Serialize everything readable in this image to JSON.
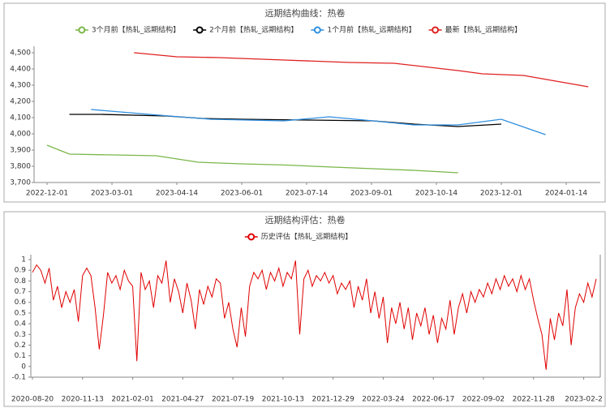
{
  "chart_data": [
    {
      "type": "line",
      "title": "远期结构曲线：热卷",
      "series": [
        {
          "name": "3个月前【热轧_远期结构】",
          "color": "#7ab648",
          "x": [
            "2022-12-01",
            "2023-01-01",
            "2023-03-31",
            "2023-04-30",
            "2023-06-01",
            "2023-06-29",
            "2023-08-03",
            "2023-09-02",
            "2023-09-29",
            "2023-10-30"
          ],
          "values": [
            3930,
            3875,
            3865,
            3825,
            3815,
            3808,
            3795,
            3785,
            3775,
            3760
          ]
        },
        {
          "name": "2个月前【热轧_远期结构】",
          "color": "#000000",
          "x": [
            "2023-01-01",
            "2023-02-14",
            "2023-04-07",
            "2023-05-03",
            "2023-06-01",
            "2023-07-14",
            "2023-09-02",
            "2023-09-29",
            "2023-10-30",
            "2023-12-01"
          ],
          "values": [
            4120,
            4120,
            4110,
            4095,
            4090,
            4085,
            4080,
            4060,
            4045,
            4060
          ]
        },
        {
          "name": "1个月前【热轧_远期结构】",
          "color": "#2e8fe0",
          "x": [
            "2023-01-31",
            "2023-04-09",
            "2023-05-09",
            "2023-06-29",
            "2023-07-31",
            "2023-09-02",
            "2023-09-29",
            "2023-10-30",
            "2023-12-01",
            "2023-12-31"
          ],
          "values": [
            4150,
            4110,
            4090,
            4080,
            4105,
            4080,
            4055,
            4055,
            4090,
            3995
          ]
        },
        {
          "name": "最新【热轧_远期结构】",
          "color": "#e02020",
          "x": [
            "2023-03-16",
            "2023-04-14",
            "2023-05-15",
            "2023-06-29",
            "2023-08-15",
            "2023-09-16",
            "2023-10-30",
            "2023-11-17",
            "2023-12-16",
            "2024-01-29"
          ],
          "values": [
            4500,
            4475,
            4470,
            4455,
            4440,
            4435,
            4390,
            4370,
            4360,
            4290
          ]
        }
      ],
      "xticks": [
        "2022-12-01",
        "2023-03-01",
        "2023-04-14",
        "2023-06-01",
        "2023-07-14",
        "2023-09-01",
        "2023-10-14",
        "2023-12-01",
        "2024-01-14"
      ],
      "ylim": [
        3700,
        4500
      ],
      "yticks": [
        {
          "value": 3700,
          "label": "3,700"
        },
        {
          "value": 3800,
          "label": "3,800"
        },
        {
          "value": 3900,
          "label": "3,900"
        },
        {
          "value": 4000,
          "label": "4,000"
        },
        {
          "value": 4100,
          "label": "4,100"
        },
        {
          "value": 4200,
          "label": "4,200"
        },
        {
          "value": 4300,
          "label": "4,300"
        },
        {
          "value": 4400,
          "label": "4,400"
        },
        {
          "value": 4500,
          "label": "4,500"
        }
      ]
    },
    {
      "type": "line",
      "title": "远期结构评估：热卷",
      "categories": [
        "2020-08-20",
        null,
        null,
        null,
        null,
        null,
        null,
        null,
        null,
        null,
        null,
        null,
        "2020-11-13",
        null,
        null,
        null,
        null,
        null,
        null,
        null,
        null,
        null,
        null,
        null,
        "2021-02-01",
        null,
        null,
        null,
        null,
        null,
        null,
        null,
        null,
        null,
        null,
        null,
        "2021-04-27",
        null,
        null,
        null,
        null,
        null,
        null,
        null,
        null,
        null,
        null,
        null,
        "2021-07-19",
        null,
        null,
        null,
        null,
        null,
        null,
        null,
        null,
        null,
        null,
        null,
        "2021-10-13",
        null,
        null,
        null,
        null,
        null,
        null,
        null,
        null,
        null,
        null,
        null,
        "2021-12-29",
        null,
        null,
        null,
        null,
        null,
        null,
        null,
        null,
        null,
        null,
        null,
        "2022-03-24",
        null,
        null,
        null,
        null,
        null,
        null,
        null,
        null,
        null,
        null,
        null,
        "2022-06-17",
        null,
        null,
        null,
        null,
        null,
        null,
        null,
        null,
        null,
        null,
        null,
        "2022-09-02",
        null,
        null,
        null,
        null,
        null,
        null,
        null,
        null,
        null,
        null,
        null,
        "2022-11-28",
        null,
        null,
        null,
        null,
        null,
        null,
        null,
        null,
        null,
        null,
        null,
        "2023-02-2",
        null,
        null,
        null
      ],
      "series": [
        {
          "name": "历史评估【热轧_远期结构】",
          "color": "#e00000",
          "values": [
            0.88,
            0.95,
            0.9,
            0.78,
            0.92,
            0.62,
            0.75,
            0.55,
            0.7,
            0.6,
            0.72,
            0.42,
            0.85,
            0.92,
            0.85,
            0.55,
            0.16,
            0.48,
            0.88,
            0.78,
            0.85,
            0.72,
            0.9,
            0.8,
            0.75,
            0.05,
            0.88,
            0.72,
            0.8,
            0.55,
            0.85,
            0.78,
            0.99,
            0.6,
            0.82,
            0.7,
            0.5,
            0.78,
            0.62,
            0.35,
            0.72,
            0.58,
            0.75,
            0.65,
            0.82,
            0.78,
            0.45,
            0.6,
            0.35,
            0.18,
            0.55,
            0.28,
            0.75,
            0.88,
            0.82,
            0.9,
            0.72,
            0.88,
            0.8,
            0.92,
            0.75,
            0.88,
            0.82,
            0.99,
            0.3,
            0.82,
            0.9,
            0.75,
            0.85,
            0.8,
            0.88,
            0.78,
            0.85,
            0.68,
            0.78,
            0.72,
            0.8,
            0.55,
            0.75,
            0.62,
            0.82,
            0.5,
            0.7,
            0.45,
            0.65,
            0.22,
            0.55,
            0.4,
            0.6,
            0.35,
            0.55,
            0.25,
            0.5,
            0.38,
            0.55,
            0.3,
            0.48,
            0.22,
            0.45,
            0.35,
            0.62,
            0.3,
            0.55,
            0.68,
            0.5,
            0.7,
            0.6,
            0.72,
            0.65,
            0.78,
            0.68,
            0.82,
            0.72,
            0.85,
            0.75,
            0.82,
            0.7,
            0.85,
            0.72,
            0.82,
            0.62,
            0.45,
            0.3,
            -0.03,
            0.45,
            0.25,
            0.5,
            0.38,
            0.72,
            0.2,
            0.55,
            0.68,
            0.6,
            0.78,
            0.65,
            0.82
          ]
        }
      ],
      "ylim": [
        -0.1,
        1
      ],
      "yticks": [
        -0.1,
        0,
        0.1,
        0.2,
        0.3,
        0.4,
        0.5,
        0.6,
        0.7,
        0.8,
        0.9,
        1
      ]
    }
  ]
}
